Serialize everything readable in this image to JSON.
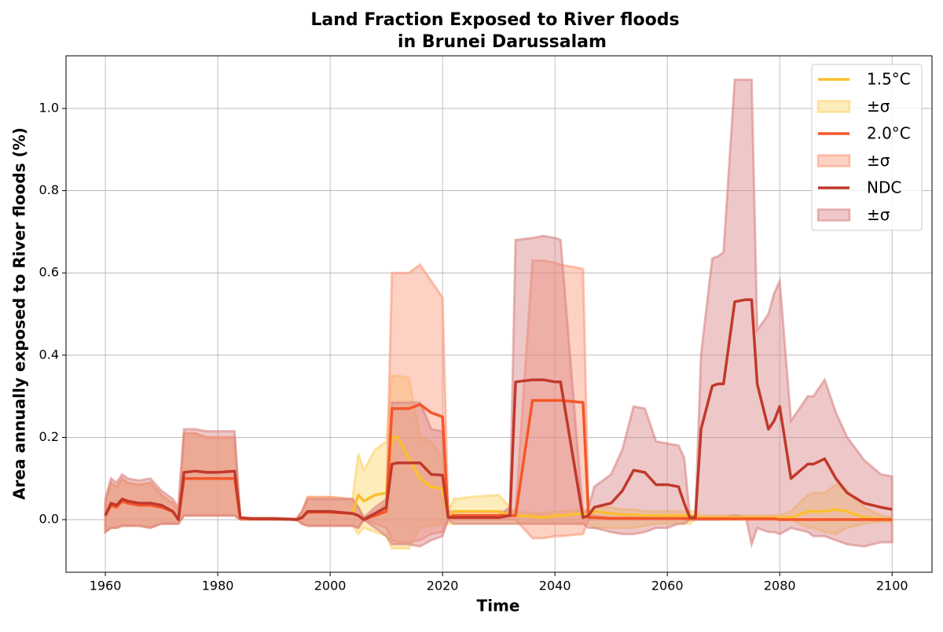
{
  "chart_data": {
    "type": "line",
    "title": [
      "Land Fraction Exposed to River floods",
      "in Brunei Darussalam"
    ],
    "xlabel": "Time",
    "ylabel": "Area annually exposed to River floods (%)",
    "xlim": [
      1953,
      2107.1
    ],
    "ylim": [
      -0.128,
      1.128
    ],
    "xticks": [
      1960,
      1980,
      2000,
      2020,
      2040,
      2060,
      2080,
      2100
    ],
    "yticks": [
      {
        "value": 0,
        "label": "0.0"
      },
      {
        "value": 0.2,
        "label": "0.2"
      },
      {
        "value": 0.4,
        "label": "0.4"
      },
      {
        "value": 0.6,
        "label": "0.6"
      },
      {
        "value": 0.8,
        "label": "0.8"
      },
      {
        "value": 1.0,
        "label": "1.0"
      }
    ],
    "grid": true,
    "legend": "upper right",
    "x": [
      1960,
      1961,
      1962,
      1963,
      1964,
      1966,
      1968,
      1970,
      1972,
      1973,
      1974,
      1976,
      1978,
      1980,
      1983,
      1984,
      1986,
      1990,
      1994,
      1995,
      1996,
      2000,
      2004,
      2005,
      2006,
      2008,
      2010,
      2011,
      2012,
      2014,
      2016,
      2018,
      2020,
      2021,
      2022,
      2025,
      2030,
      2032,
      2033,
      2036,
      2038,
      2040,
      2041,
      2045,
      2046,
      2047,
      2050,
      2052,
      2054,
      2056,
      2058,
      2060,
      2062,
      2063,
      2064,
      2065,
      2066,
      2068,
      2069,
      2070,
      2072,
      2074,
      2075,
      2076,
      2078,
      2079,
      2080,
      2082,
      2085,
      2086,
      2088,
      2090,
      2092,
      2095,
      2098,
      2100
    ],
    "series": [
      {
        "name": "1.5°C",
        "color": "#fbbf2e",
        "band_label": "±σ",
        "band_color": "#fbd46a",
        "values": [
          0.01,
          0.035,
          0.03,
          0.045,
          0.04,
          0.035,
          0.035,
          0.03,
          0.02,
          0.0,
          0.1,
          0.1,
          0.1,
          0.1,
          0.1,
          0.003,
          0.002,
          0.002,
          0.0,
          0.005,
          0.018,
          0.018,
          0.015,
          0.06,
          0.045,
          0.06,
          0.065,
          0.2,
          0.2,
          0.15,
          0.1,
          0.08,
          0.075,
          0.005,
          0.02,
          0.02,
          0.02,
          0.01,
          0.01,
          0.008,
          0.005,
          0.01,
          0.01,
          0.015,
          0.01,
          0.02,
          0.015,
          0.012,
          0.012,
          0.01,
          0.01,
          0.01,
          0.01,
          0.01,
          0.01,
          0.01,
          0.005,
          0.005,
          0.005,
          0.005,
          0.005,
          0.005,
          0.005,
          0.005,
          0.005,
          0.005,
          0.005,
          0.005,
          0.02,
          0.02,
          0.02,
          0.025,
          0.02,
          0.005,
          0.002,
          0.0
        ],
        "upper": [
          0.04,
          0.09,
          0.08,
          0.1,
          0.09,
          0.085,
          0.09,
          0.06,
          0.04,
          0.02,
          0.21,
          0.21,
          0.2,
          0.2,
          0.2,
          0.005,
          0.004,
          0.004,
          0.002,
          0.02,
          0.055,
          0.055,
          0.05,
          0.16,
          0.12,
          0.17,
          0.19,
          0.35,
          0.35,
          0.345,
          0.2,
          0.19,
          0.15,
          0.02,
          0.05,
          0.055,
          0.06,
          0.03,
          0.02,
          0.015,
          0.015,
          0.02,
          0.02,
          0.025,
          0.02,
          0.03,
          0.03,
          0.025,
          0.025,
          0.02,
          0.02,
          0.02,
          0.02,
          0.02,
          0.02,
          0.02,
          0.01,
          0.01,
          0.01,
          0.01,
          0.01,
          0.01,
          0.01,
          0.01,
          0.01,
          0.01,
          0.01,
          0.02,
          0.06,
          0.065,
          0.065,
          0.085,
          0.07,
          0.03,
          0.01,
          0.005
        ],
        "lower": [
          -0.03,
          -0.02,
          -0.02,
          -0.015,
          -0.015,
          -0.015,
          -0.02,
          -0.01,
          -0.01,
          -0.01,
          0.01,
          0.01,
          0.01,
          0.01,
          0.01,
          0,
          0,
          0,
          0,
          -0.01,
          -0.015,
          -0.015,
          -0.015,
          -0.035,
          -0.02,
          -0.03,
          -0.04,
          -0.07,
          -0.07,
          -0.07,
          -0.02,
          -0.015,
          -0.01,
          -0.01,
          -0.01,
          -0.01,
          -0.01,
          -0.01,
          -0.01,
          -0.01,
          -0.01,
          -0.01,
          -0.01,
          -0.01,
          -0.01,
          -0.02,
          -0.02,
          -0.02,
          -0.02,
          -0.015,
          -0.01,
          -0.01,
          -0.01,
          -0.01,
          -0.01,
          0,
          0,
          0,
          0,
          0,
          0,
          0,
          0,
          0,
          0,
          0,
          0,
          0,
          -0.02,
          -0.02,
          -0.03,
          -0.035,
          -0.02,
          -0.01,
          -0.005,
          -0.005
        ]
      },
      {
        "name": "2.0°C",
        "color": "#f4572a",
        "band_label": "±σ",
        "band_color": "#fb9a7a",
        "values": [
          0.01,
          0.035,
          0.03,
          0.045,
          0.04,
          0.035,
          0.035,
          0.03,
          0.02,
          0.0,
          0.1,
          0.1,
          0.1,
          0.1,
          0.1,
          0.003,
          0.002,
          0.002,
          0.0,
          0.005,
          0.018,
          0.018,
          0.015,
          0.01,
          0.0,
          0.01,
          0.02,
          0.27,
          0.27,
          0.27,
          0.28,
          0.26,
          0.25,
          0.005,
          0.01,
          0.01,
          0.01,
          0.01,
          0.01,
          0.29,
          0.29,
          0.29,
          0.29,
          0.285,
          0.005,
          0.005,
          0.003,
          0.003,
          0.003,
          0.003,
          0.003,
          0.003,
          0.003,
          0.003,
          0.002,
          0.002,
          0.002,
          0.002,
          0.002,
          0.002,
          0.002,
          0.002,
          0.002,
          0.002,
          0.002,
          0.002,
          0.0,
          0.0,
          0.0,
          0.0,
          0,
          0,
          0,
          0,
          0,
          0
        ],
        "upper": [
          0.04,
          0.09,
          0.08,
          0.1,
          0.09,
          0.085,
          0.09,
          0.06,
          0.04,
          0.02,
          0.21,
          0.21,
          0.2,
          0.2,
          0.2,
          0.005,
          0.004,
          0.004,
          0.002,
          0.02,
          0.055,
          0.055,
          0.05,
          0.03,
          0.005,
          0.02,
          0.04,
          0.6,
          0.6,
          0.6,
          0.62,
          0.58,
          0.54,
          0.02,
          0.02,
          0.02,
          0.02,
          0.02,
          0.02,
          0.63,
          0.63,
          0.625,
          0.62,
          0.61,
          0.01,
          0.01,
          0.005,
          0.005,
          0.005,
          0.005,
          0.005,
          0.005,
          0.005,
          0.005,
          0.005,
          0.005,
          0.005,
          0.005,
          0.005,
          0.005,
          0.005,
          0.005,
          0.005,
          0.005,
          0.005,
          0.005,
          0.0,
          0.0,
          0.0,
          0.0,
          0,
          0,
          0,
          0,
          0,
          0
        ],
        "lower": [
          -0.03,
          -0.02,
          -0.02,
          -0.015,
          -0.015,
          -0.015,
          -0.02,
          -0.01,
          -0.01,
          -0.01,
          0.01,
          0.01,
          0.01,
          0.01,
          0.01,
          0,
          0,
          0,
          0,
          -0.01,
          -0.015,
          -0.015,
          -0.015,
          -0.02,
          0,
          -0.01,
          -0.02,
          -0.05,
          -0.055,
          -0.055,
          -0.05,
          -0.035,
          -0.03,
          0,
          0,
          0,
          0,
          0,
          0,
          -0.045,
          -0.045,
          -0.04,
          -0.04,
          -0.035,
          0,
          0,
          0,
          0,
          0,
          0,
          0,
          0,
          0,
          0,
          0,
          0,
          0,
          0,
          0,
          0,
          0,
          0,
          0,
          0,
          0,
          0,
          0,
          0,
          0,
          0,
          0,
          0,
          0,
          0,
          0,
          0
        ]
      },
      {
        "name": "NDC",
        "color": "#c0392b",
        "band_label": "±σ",
        "band_color": "#d98585",
        "values": [
          0.01,
          0.04,
          0.035,
          0.05,
          0.045,
          0.04,
          0.04,
          0.035,
          0.02,
          0.0,
          0.115,
          0.118,
          0.115,
          0.115,
          0.118,
          0.005,
          0.002,
          0.002,
          0.0,
          0.005,
          0.02,
          0.02,
          0.015,
          0.01,
          0.0,
          0.015,
          0.03,
          0.135,
          0.138,
          0.138,
          0.138,
          0.11,
          0.108,
          0.005,
          0.005,
          0.005,
          0.005,
          0.01,
          0.335,
          0.34,
          0.34,
          0.335,
          0.335,
          0.005,
          0.01,
          0.03,
          0.04,
          0.07,
          0.12,
          0.115,
          0.085,
          0.085,
          0.08,
          0.04,
          0.005,
          0.005,
          0.22,
          0.325,
          0.33,
          0.33,
          0.53,
          0.535,
          0.535,
          0.33,
          0.22,
          0.24,
          0.275,
          0.1,
          0.135,
          0.135,
          0.148,
          0.1,
          0.065,
          0.04,
          0.03,
          0.025
        ],
        "upper": [
          0.05,
          0.1,
          0.09,
          0.11,
          0.1,
          0.095,
          0.1,
          0.07,
          0.05,
          0.03,
          0.22,
          0.22,
          0.215,
          0.215,
          0.215,
          0.005,
          0.004,
          0.004,
          0.002,
          0.02,
          0.05,
          0.05,
          0.05,
          0.03,
          0.005,
          0.03,
          0.05,
          0.285,
          0.285,
          0.285,
          0.285,
          0.22,
          0.215,
          0.01,
          0.01,
          0.01,
          0.01,
          0.03,
          0.68,
          0.685,
          0.69,
          0.685,
          0.68,
          0.01,
          0.03,
          0.08,
          0.11,
          0.17,
          0.275,
          0.27,
          0.19,
          0.185,
          0.18,
          0.15,
          0.01,
          0.01,
          0.4,
          0.635,
          0.64,
          0.65,
          1.07,
          1.07,
          1.07,
          0.46,
          0.5,
          0.55,
          0.58,
          0.24,
          0.3,
          0.3,
          0.34,
          0.26,
          0.2,
          0.145,
          0.11,
          0.105
        ],
        "lower": [
          -0.03,
          -0.02,
          -0.02,
          -0.015,
          -0.015,
          -0.015,
          -0.02,
          -0.01,
          -0.01,
          -0.01,
          0.01,
          0.01,
          0.01,
          0.01,
          0.01,
          0.0,
          0.0,
          0.0,
          0.0,
          -0.01,
          -0.015,
          -0.015,
          -0.015,
          -0.02,
          0.0,
          -0.02,
          -0.04,
          -0.06,
          -0.06,
          -0.06,
          -0.065,
          -0.05,
          -0.04,
          0.0,
          -0.01,
          -0.01,
          -0.01,
          -0.01,
          -0.01,
          -0.01,
          -0.01,
          -0.01,
          -0.01,
          -0.01,
          -0.02,
          -0.02,
          -0.03,
          -0.035,
          -0.035,
          -0.03,
          -0.02,
          -0.02,
          -0.01,
          -0.01,
          0.0,
          0.0,
          0.0,
          0.0,
          0.0,
          0.005,
          0.01,
          0.005,
          -0.06,
          -0.02,
          -0.03,
          -0.03,
          -0.035,
          -0.02,
          -0.03,
          -0.04,
          -0.04,
          -0.05,
          -0.06,
          -0.065,
          -0.055,
          -0.055
        ]
      }
    ]
  }
}
